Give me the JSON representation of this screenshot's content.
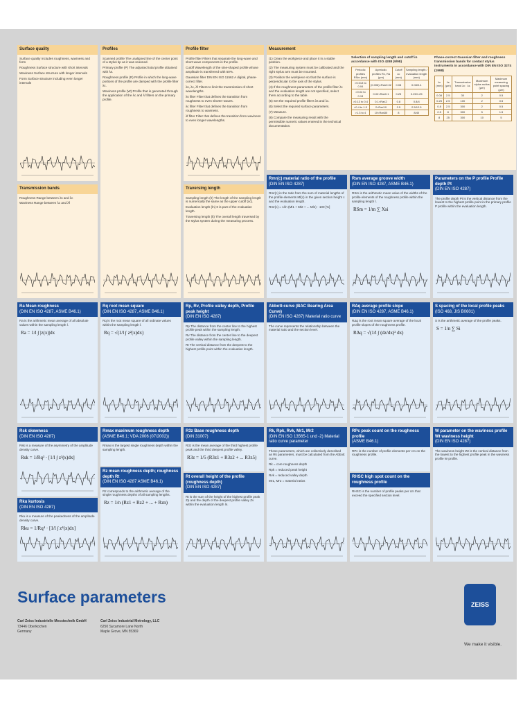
{
  "poster": {
    "panels": [
      {
        "title": "Surface quality",
        "lines": [
          "Surface quality  Includes roughness, waviness and form",
          "Roughness  Surface structure with short intervals",
          "Waviness  Surface structure with longer intervals",
          "Form  Surface structure including even longer intervals"
        ]
      },
      {
        "title": "Profiles",
        "lines": [
          "Scanned profile  The unaligned line of the center point of a stylus tip as it was scanned.",
          "Primary profile (P)  The adjusted total profile obtained with λs.",
          "Roughness profile (R)  Profile in which the long-wave portions of the profile are damped with the profile filter λc.",
          "Waviness profile (W)  Profile that is generated through the application of the λc and λf filters on the primary profile."
        ]
      },
      {
        "title": "Profile filter",
        "lines": [
          "Profile filter  Filters that separate the long-wave and short-wave components in the profile.",
          "Cutoff  Wavelength of the sine-shaped profile whose amplitude is transferred with 50%.",
          "Gaussian filter DIN EN ISO 11562  A digital, phase-correct filter.",
          "λs, λc, λf  Filters to limit the transmission of short wavelengths.",
          "λs filter  Filter that defines the transition from roughness to even shorter waves.",
          "λc filter  Filter that defines the transition from roughness to waviness.",
          "λf filter  Filter that defines the transition from waviness to even longer wavelengths."
        ]
      },
      {
        "title": "Measurement",
        "lines": [
          "(1) Clean the workpiece and place it in a stable position.",
          "(2) The measuring system must be calibrated and the right stylus arm must be mounted.",
          "(3) Position the workpiece so that the surface is perpendicular to the axis of the stylus.",
          "(4) If the roughness parameters of the profile filter λc and the evaluation length are not specified, select them according to the table.",
          "(5) Set the required profile filters λs and λc.",
          "(6) Select the required surface parameters.",
          "(7) Measure.",
          "(8) Compare the measuring result with the permissible numeric values entered in the technical documentation."
        ]
      },
      {
        "title": "Transmission bands",
        "lines": [
          "Roughness  Range between λs and λc",
          "Waviness  Range between λc and λf"
        ]
      },
      {
        "title": "Traversing length",
        "lines": [
          "Sampling length (lr)  The length of the sampling length is numerically the same as the upper cutoff (λc).",
          "Evaluation length (ln)  It is part of the evaluation length.",
          "Traversing length (lt)  The overall length traversed by the stylus system during the measuring process."
        ]
      },
      {
        "title": "Rmr(c) material ratio of the profile",
        "subtitle": "(DIN EN ISO 4287)",
        "lines": [
          "Rmr(c) is the ratio from the sum of material lengths of the profile elements Ml(c) in the given section height c and the evaluation length.",
          "Rmr(c) = 1/ln (Ml1 + Ml2 + ... Mln) · 100 [%]"
        ]
      },
      {
        "title": "Rsm average groove width",
        "subtitle": "(DIN EN ISO 4287, ASME B46.1)",
        "lines": [
          "RSm is the arithmetic mean value of the widths of the profile elements of the roughness profile within the sampling length l."
        ],
        "formula": "RSm = 1/m ∑ Xsi"
      },
      {
        "title": "Parameters on the P profile Profile depth Pt",
        "subtitle": "(DIN EN ISO 4287)",
        "lines": [
          "The profile depth Pt is the vertical distance from the lowest to the highest profile point in the primary profile P profile within the evaluation length."
        ]
      },
      {
        "title": "Ra Mean roughness",
        "subtitle": "(DIN EN ISO 4287, ASME B46.1)",
        "lines": [
          "Ra is the arithmetic mean average of all absolute values within the sampling length l."
        ],
        "formula": "Ra = 1/l ∫ |z(x)|dx"
      },
      {
        "title": "Rq root mean square",
        "subtitle": "(DIN EN ISO 4287, ASME B46.1)",
        "lines": [
          "Rq is the root mean square of all ordinate values within the sampling length l."
        ],
        "formula": "Rq = √(1/l ∫ z²(x)dx)"
      },
      {
        "title": "Rp, Rv, Profile valley depth, Profile peak height",
        "subtitle": "(DIN EN ISO 4287)",
        "lines": [
          "Rp  The distance from the center line to the highest profile peak within the sampling length.",
          "Rv  The distance from the center line to the deepest profile valley within the sampling length.",
          "Rt  The vertical distance from the deepest to the highest profile point within the evaluation length."
        ]
      },
      {
        "title": "Abbott-curve (BAC Bearing Area Curve)",
        "subtitle": "(DIN EN ISO 4287) Material ratio curve",
        "lines": [
          "The curve represents the relationship between the material ratio and the section level."
        ]
      },
      {
        "title": "RΔq average profile slope",
        "subtitle": "(DIN EN ISO 4287, ASME B46.1)",
        "lines": [
          "RΔq is the root mean square average of the local profile slopes of the roughness profile."
        ],
        "formula": "RΔq = √(1/l ∫ (dz/dx)² dx)"
      },
      {
        "title": "S spacing of the local profile peaks",
        "subtitle": "(ISO 468, JIS B0601)",
        "lines": [
          "S is the arithmetic average of the profile peaks."
        ],
        "formula": "S = 1/n ∑ Si"
      },
      {
        "title": "Rsk skewness",
        "subtitle": "(DIN EN ISO 4287)",
        "lines": [
          "Rsk is a measure of the asymmetry of the amplitude density curve."
        ],
        "formula": "Rsk = 1/Rq³ · [1/l ∫ z³(x)dx]"
      },
      {
        "title": "Rku kurtosis",
        "subtitle": "(DIN EN ISO 4287)",
        "lines": [
          "Rku is a measure of the peakedness of the amplitude density curve."
        ],
        "formula": "Rku = 1/Rq⁴ · [1/l ∫ z⁴(x)dx]"
      },
      {
        "title": "Rmax maximum roughness depth",
        "subtitle": "(ASME B46.1; VDA 2006 (07/2002))",
        "lines": [
          "Rmax is the largest single roughness depth within the sampling length."
        ]
      },
      {
        "title": "Rz mean roughness depth; roughness depth Rt",
        "subtitle": "(DIN EN ISO 4287 ASME B46.1)",
        "lines": [
          "Rz corresponds to the arithmetic average of the single roughness depths of all sampling lengths."
        ],
        "formula": "Rz = 1/n (Rz1 + Rz2 + ... + Rzn)"
      },
      {
        "title": "R3z Base roughness depth",
        "subtitle": "(DIN 31007)",
        "lines": [
          "R3z is the mean average of the third highest profile peak and the third deepest profile valley."
        ],
        "formula": "R3z = 1/5 (R3z1 + R3z2 + ... R3z5)"
      },
      {
        "title": "Rt overall height of the profile (roughness depth)",
        "subtitle": "(DIN EN ISO 4287)",
        "lines": [
          "Rt is the sum of the height of the highest profile peak Zp and the depth of the deepest profile valley Zv within the evaluation length ln."
        ]
      },
      {
        "title": "Rk, Rpk, Rvk, Mr1, Mr2",
        "subtitle": "(DIN EN ISO 13565-1 und -2) Material ratio curve parameter",
        "lines": [
          "These parameters, which are collectively described as Rk parameters, must be calculated from the Abbott curve.",
          "Rk = core roughness depth",
          "Rpk = reduced peak height",
          "Rvk = reduced valley depth",
          "Mr1, Mr2 = material ratios"
        ]
      },
      {
        "title": "RPc peak count on the roughness profile",
        "subtitle": "(ASME B46.1)",
        "lines": [
          "RPc is the number of profile elements per cm on the roughness profile."
        ]
      },
      {
        "title": "RHSC high spot count on the roughness profile",
        "lines": [
          "RHSC is the number of profile peaks per cm that exceed the specified section level."
        ]
      },
      {
        "title": "W parameter on the waviness profile Wt waviness height",
        "subtitle": "(DIN EN ISO 4287)",
        "lines": [
          "The waviness height Wt is the vertical distance from the lowest to the highest profile peak in the waviness profile W profile."
        ]
      }
    ],
    "table1": {
      "caption": "Selection of sampling length and cutoff in accordance with ISO 4288 (9/98)",
      "header": [
        "Periodic profiles RSm (mm)",
        "Aperiodic profiles Rz, Ra (µm)",
        "Cutoff λc (mm)",
        "Sampling length / evaluation length (mm)"
      ],
      "rows": [
        [
          ">0.013 to 0.04",
          "(0.006)<Ra≤0.02",
          "0.08",
          "0.08/0.4"
        ],
        [
          ">0.04 to 0.13",
          "0.02<Ra≤0.1",
          "0.25",
          "0.25/1.25"
        ],
        [
          ">0.13 to 0.4",
          "0.1<Ra≤2",
          "0.8",
          "0.8/4"
        ],
        [
          ">0.4 to 1.3",
          "2<Ra≤10",
          "2.5",
          "2.5/12.5"
        ],
        [
          ">1.3 to 4",
          "10<Ra≤80",
          "8",
          "8/40"
        ]
      ]
    },
    "table2": {
      "caption": "Phase-correct Gaussian filter and roughness transmission bands for contact stylus instruments in accordance with DIN EN ISO 3274 (1998)",
      "header": [
        "λc (mm)",
        "λs (µm)",
        "Transmission band λc : λs",
        "Maximum stylus radius (µm)",
        "Maximum measuring point spacing (µm)"
      ],
      "rows": [
        [
          "0.08",
          "2.5",
          "30",
          "2",
          "0.5"
        ],
        [
          "0.25",
          "2.5",
          "100",
          "2",
          "0.5"
        ],
        [
          "0.8",
          "2.5",
          "300",
          "2",
          "0.5"
        ],
        [
          "2.5",
          "8",
          "300",
          "5",
          "1.5"
        ],
        [
          "8",
          "25",
          "300",
          "10",
          "5"
        ]
      ]
    },
    "footer": {
      "title": "Surface parameters",
      "address1": [
        "Carl Zeiss Industrielle Messtechnik GmbH",
        "73446 Oberkochen",
        "Germany"
      ],
      "address2": [
        "Carl Zeiss Industrial Metrology, LLC",
        "6250 Sycamore Lane North",
        "Maple Grove, MN 55369"
      ],
      "logo": "ZEISS",
      "slogan": "We make it visible."
    }
  }
}
